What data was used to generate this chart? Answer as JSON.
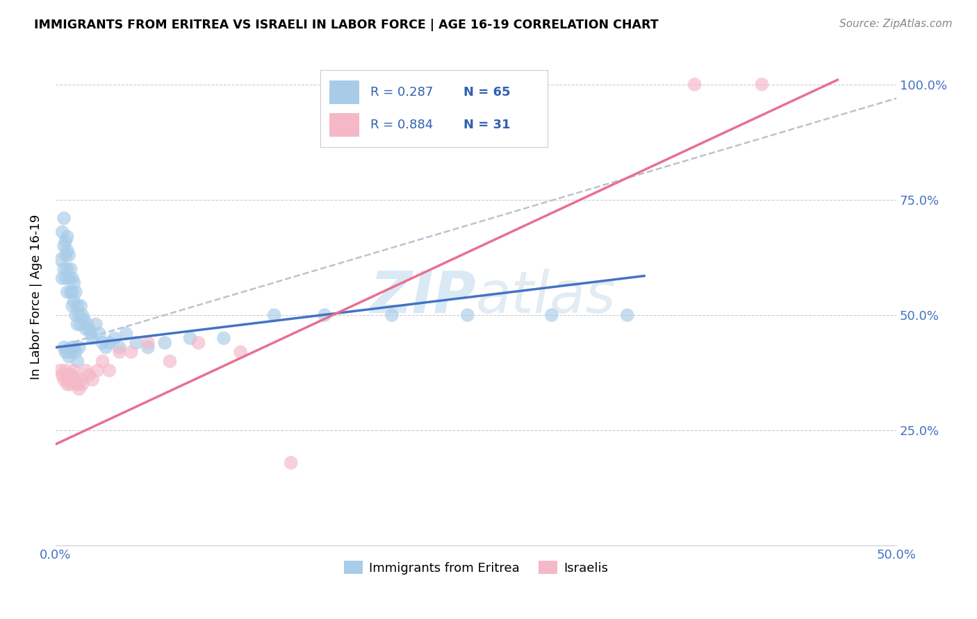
{
  "title": "IMMIGRANTS FROM ERITREA VS ISRAELI IN LABOR FORCE | AGE 16-19 CORRELATION CHART",
  "source": "Source: ZipAtlas.com",
  "ylabel": "In Labor Force | Age 16-19",
  "xlim": [
    0.0,
    0.5
  ],
  "ylim": [
    0.0,
    1.08
  ],
  "xtick_positions": [
    0.0,
    0.1,
    0.2,
    0.3,
    0.4,
    0.5
  ],
  "xtick_labels": [
    "0.0%",
    "",
    "",
    "",
    "",
    "50.0%"
  ],
  "ytick_positions": [
    0.25,
    0.5,
    0.75,
    1.0
  ],
  "ytick_labels": [
    "25.0%",
    "50.0%",
    "75.0%",
    "100.0%"
  ],
  "legend_r1": "R = 0.287",
  "legend_n1": "N = 65",
  "legend_r2": "R = 0.884",
  "legend_n2": "N = 31",
  "legend_label1": "Immigrants from Eritrea",
  "legend_label2": "Israelis",
  "blue_color": "#a8cce8",
  "pink_color": "#f4b8c8",
  "blue_line_color": "#4472c4",
  "pink_line_color": "#e87090",
  "dashed_line_color": "#b0b8c8",
  "text_color_blue": "#4472c4",
  "text_color_legend": "#3060b0",
  "watermark_color": "#d0e4f4",
  "blue_line_x": [
    0.0,
    0.35
  ],
  "blue_line_y": [
    0.43,
    0.585
  ],
  "dashed_line_x": [
    0.0,
    0.5
  ],
  "dashed_line_y": [
    0.43,
    0.97
  ],
  "pink_line_x": [
    0.0,
    0.465
  ],
  "pink_line_y": [
    0.22,
    1.01
  ],
  "blue_scatter_x": [
    0.003,
    0.004,
    0.004,
    0.005,
    0.005,
    0.005,
    0.006,
    0.006,
    0.006,
    0.007,
    0.007,
    0.007,
    0.007,
    0.008,
    0.008,
    0.009,
    0.009,
    0.01,
    0.01,
    0.01,
    0.011,
    0.011,
    0.012,
    0.012,
    0.013,
    0.013,
    0.014,
    0.015,
    0.015,
    0.016,
    0.017,
    0.018,
    0.019,
    0.02,
    0.021,
    0.022,
    0.024,
    0.026,
    0.028,
    0.03,
    0.032,
    0.035,
    0.038,
    0.042,
    0.048,
    0.055,
    0.065,
    0.08,
    0.1,
    0.13,
    0.16,
    0.2,
    0.245,
    0.295,
    0.34,
    0.005,
    0.006,
    0.007,
    0.008,
    0.009,
    0.01,
    0.011,
    0.012,
    0.013,
    0.014
  ],
  "blue_scatter_y": [
    0.62,
    0.68,
    0.58,
    0.71,
    0.65,
    0.6,
    0.66,
    0.63,
    0.58,
    0.67,
    0.64,
    0.6,
    0.55,
    0.63,
    0.58,
    0.6,
    0.55,
    0.58,
    0.55,
    0.52,
    0.57,
    0.53,
    0.55,
    0.5,
    0.52,
    0.48,
    0.5,
    0.52,
    0.48,
    0.5,
    0.49,
    0.47,
    0.48,
    0.47,
    0.46,
    0.45,
    0.48,
    0.46,
    0.44,
    0.43,
    0.44,
    0.45,
    0.43,
    0.46,
    0.44,
    0.43,
    0.44,
    0.45,
    0.45,
    0.5,
    0.5,
    0.5,
    0.5,
    0.5,
    0.5,
    0.43,
    0.42,
    0.42,
    0.41,
    0.42,
    0.43,
    0.43,
    0.42,
    0.4,
    0.43
  ],
  "pink_scatter_x": [
    0.003,
    0.004,
    0.005,
    0.006,
    0.007,
    0.007,
    0.008,
    0.009,
    0.009,
    0.01,
    0.011,
    0.012,
    0.013,
    0.014,
    0.015,
    0.016,
    0.018,
    0.02,
    0.022,
    0.025,
    0.028,
    0.032,
    0.038,
    0.045,
    0.055,
    0.068,
    0.085,
    0.11,
    0.14,
    0.38,
    0.42
  ],
  "pink_scatter_y": [
    0.38,
    0.37,
    0.36,
    0.38,
    0.37,
    0.35,
    0.36,
    0.37,
    0.35,
    0.37,
    0.38,
    0.36,
    0.35,
    0.34,
    0.36,
    0.35,
    0.38,
    0.37,
    0.36,
    0.38,
    0.4,
    0.38,
    0.42,
    0.42,
    0.44,
    0.4,
    0.44,
    0.42,
    0.18,
    1.0,
    1.0
  ]
}
